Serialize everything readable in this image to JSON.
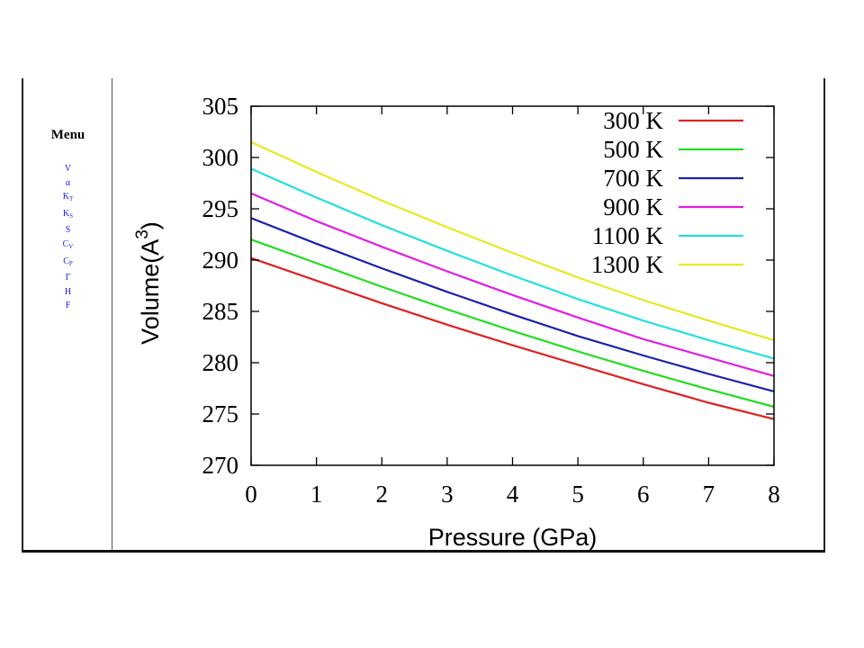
{
  "menu": {
    "title": "Menu",
    "items": [
      {
        "base": "V",
        "sub": ""
      },
      {
        "base": "α",
        "sub": ""
      },
      {
        "base": "K",
        "sub": "T"
      },
      {
        "base": "K",
        "sub": "S"
      },
      {
        "base": "S",
        "sub": ""
      },
      {
        "base": "C",
        "sub": "V"
      },
      {
        "base": "C",
        "sub": "P"
      },
      {
        "base": "Γ",
        "sub": ""
      },
      {
        "base": "H",
        "sub": ""
      },
      {
        "base": "F",
        "sub": ""
      }
    ]
  },
  "colors": {
    "menu_link": "#1a1aff",
    "axis": "#000000"
  },
  "chart_data": {
    "type": "line",
    "title": "",
    "xlabel": "Pressure (GPa)",
    "ylabel_base": "Volume(A",
    "ylabel_sup": "3",
    "ylabel_close": ")",
    "xlim": [
      0,
      8
    ],
    "ylim": [
      270,
      305
    ],
    "xticks": [
      0,
      1,
      2,
      3,
      4,
      5,
      6,
      7,
      8
    ],
    "yticks": [
      270,
      275,
      280,
      285,
      290,
      295,
      300,
      305
    ],
    "grid": false,
    "legend_position": "top-right",
    "x": [
      0,
      1,
      2,
      3,
      4,
      5,
      6,
      7,
      8
    ],
    "series": [
      {
        "name": "300 K",
        "color": "#dd2222",
        "values": [
          290.2,
          288.0,
          285.8,
          283.7,
          281.7,
          279.8,
          277.9,
          276.1,
          274.5
        ]
      },
      {
        "name": "500 K",
        "color": "#22dd22",
        "values": [
          292.0,
          289.7,
          287.4,
          285.2,
          283.1,
          281.1,
          279.2,
          277.4,
          275.7
        ]
      },
      {
        "name": "700 K",
        "color": "#1a22aa",
        "values": [
          294.1,
          291.6,
          289.2,
          286.9,
          284.7,
          282.6,
          280.7,
          278.9,
          277.2
        ]
      },
      {
        "name": "900 K",
        "color": "#e020e0",
        "values": [
          296.5,
          293.8,
          291.3,
          288.9,
          286.6,
          284.4,
          282.3,
          280.5,
          278.7
        ]
      },
      {
        "name": "1100 K",
        "color": "#22e0e0",
        "values": [
          298.9,
          296.1,
          293.4,
          290.9,
          288.5,
          286.2,
          284.1,
          282.2,
          280.4
        ]
      },
      {
        "name": "1300 K",
        "color": "#e8e820",
        "values": [
          301.5,
          298.6,
          295.8,
          293.2,
          290.7,
          288.3,
          286.1,
          284.1,
          282.2
        ]
      }
    ]
  }
}
